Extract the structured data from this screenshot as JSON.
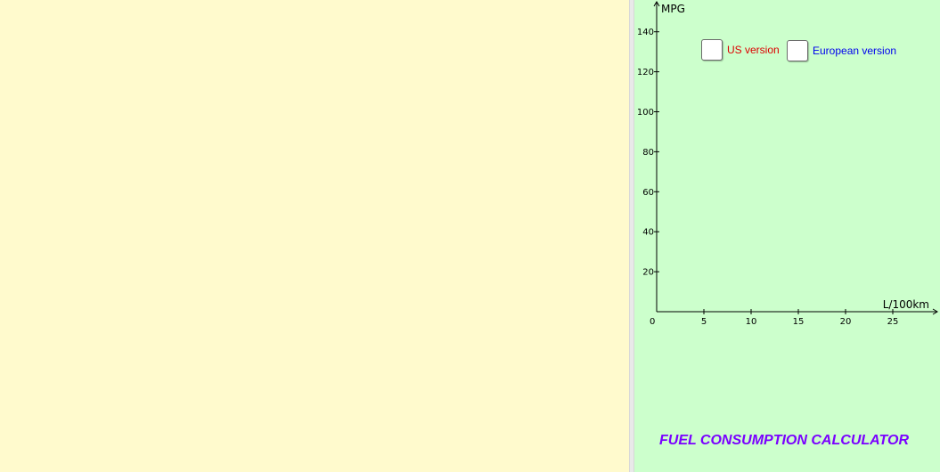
{
  "graph": {
    "type": "line",
    "x_axis_label": "L/100km",
    "y_axis_label": "MPG",
    "x_ticks": [
      0,
      5,
      10,
      15,
      20,
      25
    ],
    "y_ticks": [
      20,
      40,
      60,
      80,
      100,
      120,
      140
    ],
    "x_range": [
      0,
      29
    ],
    "y_range": [
      0,
      147
    ],
    "origin_label": "0"
  },
  "controls": {
    "us_version": {
      "label": "US version",
      "color": "#dd0000",
      "checked": false
    },
    "european_version": {
      "label": "European version",
      "color": "#0000ee",
      "checked": false
    }
  },
  "title": {
    "text": "FUEL CONSUMPTION CALCULATOR",
    "color": "#7a00ff"
  },
  "colors": {
    "algebra_background": "#fffacd",
    "graphics_background": "#ccffcc"
  }
}
